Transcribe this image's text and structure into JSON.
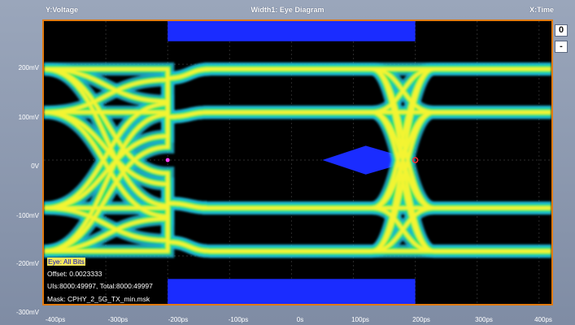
{
  "header": {
    "y_label": "Y:Voltage",
    "title": "Width1: Eye Diagram",
    "x_label": "X:Time"
  },
  "side_buttons": {
    "zero": "0",
    "minus": "-"
  },
  "y_ticks": [
    "200mV",
    "100mV",
    "0V",
    "-100mV",
    "-200mV",
    "-300mV"
  ],
  "x_ticks": [
    "-400ps",
    "-300ps",
    "-200ps",
    "-100ps",
    "0s",
    "100ps",
    "200ps",
    "300ps",
    "400ps"
  ],
  "info": [
    "Eye: All Bits",
    "Offset: 0.0023333",
    "UIs:8000:49997, Total:8000:49997",
    "Mask: CPHY_2_5G_TX_min.msk"
  ],
  "colors": {
    "mask": "#1a2cff",
    "trace_hot": "#f4f430",
    "trace_mid": "#29e85a",
    "trace_cool": "#1fb8d8",
    "frame": "#e07a10"
  },
  "chart_data": {
    "type": "eye-diagram",
    "x_unit": "ps",
    "y_unit": "mV",
    "xlim": [
      -400,
      420
    ],
    "ylim": [
      -300,
      290
    ],
    "grid": true,
    "levels_mV": [
      190,
      100,
      -100,
      -190
    ],
    "crossings_ps": [
      -200,
      200
    ],
    "mask": {
      "top": {
        "x": [
          -200,
          200
        ],
        "y": [
          248,
          290
        ]
      },
      "bottom": {
        "x": [
          -200,
          200
        ],
        "y": [
          -300,
          -248
        ]
      },
      "center": [
        [
          50,
          0
        ],
        [
          120,
          30
        ],
        [
          200,
          0
        ],
        [
          120,
          -30
        ]
      ]
    }
  }
}
